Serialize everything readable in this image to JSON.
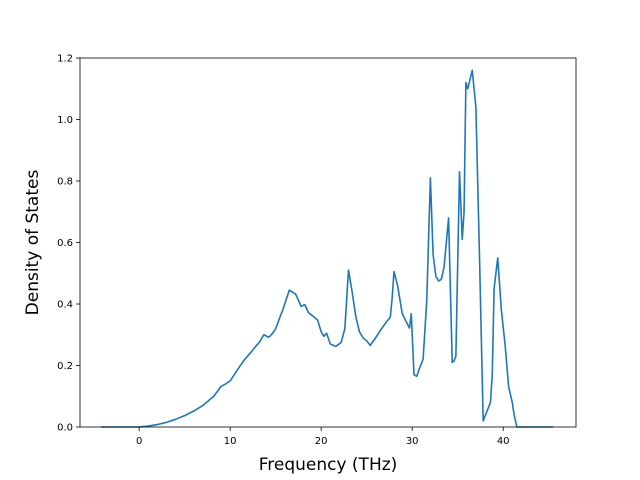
{
  "chart_data": {
    "type": "line",
    "title": "",
    "xlabel": "Frequency (THz)",
    "ylabel": "Density of States",
    "xlim": [
      -6.5,
      48.0
    ],
    "ylim": [
      0.0,
      1.2
    ],
    "xticks": [
      0,
      10,
      20,
      30,
      40
    ],
    "yticks": [
      0.0,
      0.2,
      0.4,
      0.6,
      0.8,
      1.0,
      1.2
    ],
    "xtick_labels": [
      "0",
      "10",
      "20",
      "30",
      "40"
    ],
    "ytick_labels": [
      "0.0",
      "0.2",
      "0.4",
      "0.6",
      "0.8",
      "1.0",
      "1.2"
    ],
    "grid": false,
    "legend": "none",
    "series": [
      {
        "color": "#1f77b4",
        "x": [
          -4.2,
          0.0,
          1.0,
          2.0,
          3.0,
          4.0,
          5.0,
          6.0,
          7.0,
          7.6,
          8.2,
          9.0,
          9.5,
          10.0,
          11.0,
          11.6,
          12.2,
          12.8,
          13.2,
          13.7,
          14.2,
          14.4,
          14.8,
          15.0,
          15.2,
          15.5,
          15.8,
          16.5,
          17.2,
          17.8,
          18.2,
          18.6,
          19.2,
          19.6,
          20.0,
          20.3,
          20.6,
          21.0,
          21.6,
          22.2,
          22.6,
          23.0,
          23.4,
          23.8,
          24.2,
          24.6,
          25.0,
          25.4,
          25.6,
          25.8,
          26.2,
          26.6,
          27.0,
          27.4,
          27.6,
          27.8,
          28.0,
          28.4,
          28.9,
          29.3,
          29.7,
          29.9,
          30.2,
          30.5,
          30.8,
          31.2,
          31.6,
          32.0,
          32.3,
          32.6,
          32.9,
          33.2,
          33.5,
          34.0,
          34.4,
          34.6,
          34.8,
          35.2,
          35.5,
          35.7,
          35.9,
          36.1,
          36.6,
          37.0,
          37.4,
          37.8,
          38.2,
          38.6,
          38.8,
          39.0,
          39.4,
          39.8,
          40.2,
          40.6,
          41.0,
          41.2,
          41.5,
          42.0,
          45.5
        ],
        "y": [
          0.0,
          0.0,
          0.003,
          0.008,
          0.015,
          0.025,
          0.037,
          0.052,
          0.07,
          0.085,
          0.1,
          0.132,
          0.14,
          0.15,
          0.195,
          0.22,
          0.24,
          0.262,
          0.275,
          0.3,
          0.292,
          0.296,
          0.31,
          0.32,
          0.335,
          0.36,
          0.382,
          0.445,
          0.432,
          0.392,
          0.398,
          0.372,
          0.358,
          0.348,
          0.31,
          0.295,
          0.305,
          0.27,
          0.262,
          0.275,
          0.32,
          0.51,
          0.44,
          0.36,
          0.31,
          0.29,
          0.28,
          0.265,
          0.275,
          0.282,
          0.3,
          0.318,
          0.335,
          0.35,
          0.358,
          0.42,
          0.505,
          0.46,
          0.37,
          0.345,
          0.322,
          0.368,
          0.17,
          0.165,
          0.19,
          0.22,
          0.41,
          0.81,
          0.56,
          0.49,
          0.475,
          0.48,
          0.52,
          0.68,
          0.21,
          0.215,
          0.23,
          0.83,
          0.61,
          0.7,
          1.12,
          1.1,
          1.16,
          1.04,
          0.55,
          0.02,
          0.05,
          0.08,
          0.17,
          0.45,
          0.55,
          0.38,
          0.27,
          0.13,
          0.08,
          0.04,
          0.0,
          0.0,
          0.0
        ]
      }
    ]
  }
}
